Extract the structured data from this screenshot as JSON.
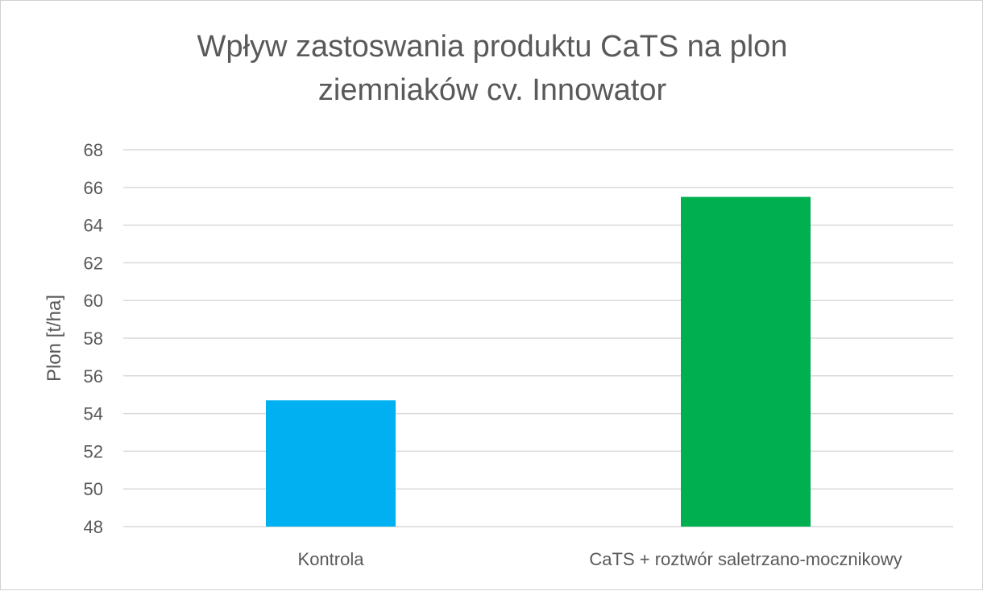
{
  "chart_data": {
    "type": "bar",
    "title_lines": [
      "Wpływ zastoswania produktu CaTS na plon",
      "ziemniaków cv. Innowator"
    ],
    "categories": [
      "Kontrola",
      "CaTS + roztwór saletrzano-mocznikowy"
    ],
    "values": [
      54.7,
      65.5
    ],
    "bar_colors": [
      "#00B0F0",
      "#00B050"
    ],
    "xlabel": "",
    "ylabel": "Plon [t/ha]",
    "ylim": [
      48,
      68
    ],
    "yticks": [
      48,
      50,
      52,
      54,
      56,
      58,
      60,
      62,
      64,
      66,
      68
    ],
    "grid": true,
    "legend": "none",
    "gridline_color": "#d9d9d9"
  }
}
